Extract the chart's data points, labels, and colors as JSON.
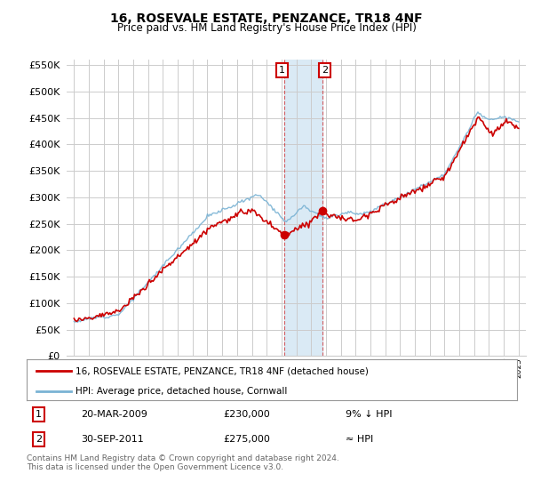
{
  "title": "16, ROSEVALE ESTATE, PENZANCE, TR18 4NF",
  "subtitle": "Price paid vs. HM Land Registry's House Price Index (HPI)",
  "ylim": [
    0,
    560000
  ],
  "yticks": [
    0,
    50000,
    100000,
    150000,
    200000,
    250000,
    300000,
    350000,
    400000,
    450000,
    500000,
    550000
  ],
  "hpi_color": "#7ab3d4",
  "price_color": "#cc0000",
  "shade_color": "#daeaf5",
  "legend_line1": "16, ROSEVALE ESTATE, PENZANCE, TR18 4NF (detached house)",
  "legend_line2": "HPI: Average price, detached house, Cornwall",
  "transaction1_date": "20-MAR-2009",
  "transaction1_price": "£230,000",
  "transaction1_hpi": "9% ↓ HPI",
  "transaction2_date": "30-SEP-2011",
  "transaction2_price": "£275,000",
  "transaction2_hpi": "≈ HPI",
  "footnote": "Contains HM Land Registry data © Crown copyright and database right 2024.\nThis data is licensed under the Open Government Licence v3.0.",
  "background_color": "#ffffff",
  "grid_color": "#cccccc",
  "t1_year": 2009.2,
  "t2_year": 2011.75,
  "t1_price": 230000,
  "t2_price": 275000
}
